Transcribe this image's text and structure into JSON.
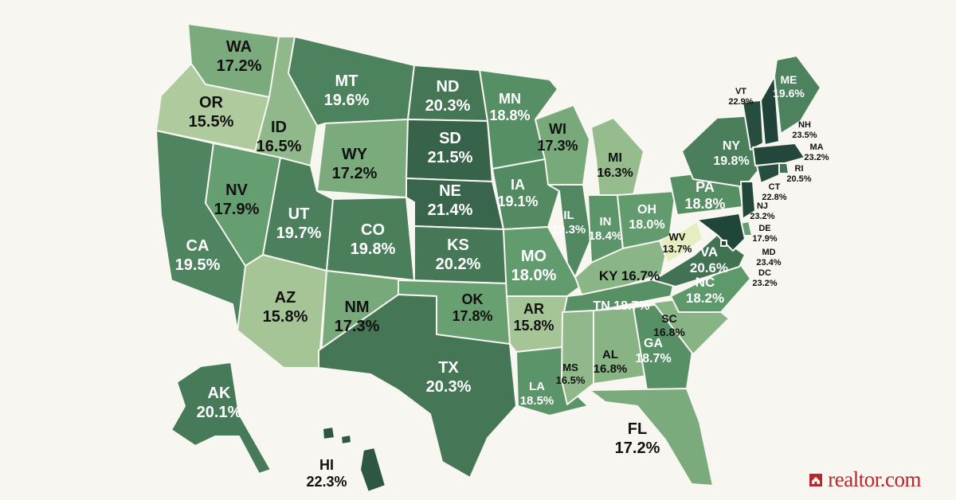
{
  "brand": {
    "logo_text": "realtor.com",
    "logo_color": "#b7282e"
  },
  "color_scale": {
    "min_color": "#e6edbf",
    "max_color": "#1f4338",
    "min_value": 13.7,
    "max_value": 23.5
  },
  "states": [
    {
      "code": "WA",
      "value": "17.2%",
      "pct": 17.2
    },
    {
      "code": "OR",
      "value": "15.5%",
      "pct": 15.5
    },
    {
      "code": "CA",
      "value": "19.5%",
      "pct": 19.5
    },
    {
      "code": "ID",
      "value": "16.5%",
      "pct": 16.5
    },
    {
      "code": "NV",
      "value": "17.9%",
      "pct": 17.9
    },
    {
      "code": "MT",
      "value": "19.6%",
      "pct": 19.6
    },
    {
      "code": "WY",
      "value": "17.2%",
      "pct": 17.2
    },
    {
      "code": "UT",
      "value": "19.7%",
      "pct": 19.7
    },
    {
      "code": "AZ",
      "value": "15.8%",
      "pct": 15.8
    },
    {
      "code": "CO",
      "value": "19.8%",
      "pct": 19.8
    },
    {
      "code": "NM",
      "value": "17.3%",
      "pct": 17.3
    },
    {
      "code": "ND",
      "value": "20.3%",
      "pct": 20.3
    },
    {
      "code": "SD",
      "value": "21.5%",
      "pct": 21.5
    },
    {
      "code": "NE",
      "value": "21.4%",
      "pct": 21.4
    },
    {
      "code": "KS",
      "value": "20.2%",
      "pct": 20.2
    },
    {
      "code": "OK",
      "value": "17.8%",
      "pct": 17.8
    },
    {
      "code": "TX",
      "value": "20.3%",
      "pct": 20.3
    },
    {
      "code": "MN",
      "value": "18.8%",
      "pct": 18.8
    },
    {
      "code": "IA",
      "value": "19.1%",
      "pct": 19.1
    },
    {
      "code": "MO",
      "value": "18.0%",
      "pct": 18.0
    },
    {
      "code": "AR",
      "value": "15.8%",
      "pct": 15.8
    },
    {
      "code": "LA",
      "value": "18.5%",
      "pct": 18.5
    },
    {
      "code": "WI",
      "value": "17.3%",
      "pct": 17.3
    },
    {
      "code": "IL",
      "value": "19.3%",
      "pct": 19.3
    },
    {
      "code": "MI",
      "value": "16.3%",
      "pct": 16.3
    },
    {
      "code": "IN",
      "value": "18.4%",
      "pct": 18.4
    },
    {
      "code": "OH",
      "value": "18.0%",
      "pct": 18.0
    },
    {
      "code": "KY",
      "value": "16.7%",
      "pct": 16.7
    },
    {
      "code": "TN",
      "value": "18.7%",
      "pct": 18.7
    },
    {
      "code": "MS",
      "value": "16.5%",
      "pct": 16.5
    },
    {
      "code": "AL",
      "value": "16.8%",
      "pct": 16.8
    },
    {
      "code": "GA",
      "value": "18.7%",
      "pct": 18.7
    },
    {
      "code": "FL",
      "value": "17.2%",
      "pct": 17.2
    },
    {
      "code": "SC",
      "value": "16.8%",
      "pct": 16.8
    },
    {
      "code": "NC",
      "value": "18.2%",
      "pct": 18.2
    },
    {
      "code": "VA",
      "value": "20.6%",
      "pct": 20.6
    },
    {
      "code": "WV",
      "value": "13.7%",
      "pct": 13.7
    },
    {
      "code": "PA",
      "value": "18.8%",
      "pct": 18.8
    },
    {
      "code": "NY",
      "value": "19.8%",
      "pct": 19.8
    },
    {
      "code": "VT",
      "value": "22.9%",
      "pct": 22.9
    },
    {
      "code": "NH",
      "value": "23.5%",
      "pct": 23.5
    },
    {
      "code": "ME",
      "value": "19.6%",
      "pct": 19.6
    },
    {
      "code": "MA",
      "value": "23.2%",
      "pct": 23.2
    },
    {
      "code": "RI",
      "value": "20.5%",
      "pct": 20.5
    },
    {
      "code": "CT",
      "value": "22.8%",
      "pct": 22.8
    },
    {
      "code": "NJ",
      "value": "23.2%",
      "pct": 23.2
    },
    {
      "code": "DE",
      "value": "17.9%",
      "pct": 17.9
    },
    {
      "code": "MD",
      "value": "23.4%",
      "pct": 23.4
    },
    {
      "code": "DC",
      "value": "23.2%",
      "pct": 23.2
    },
    {
      "code": "AK",
      "value": "20.1%",
      "pct": 20.1
    },
    {
      "code": "HI",
      "value": "22.3%",
      "pct": 22.3
    }
  ]
}
